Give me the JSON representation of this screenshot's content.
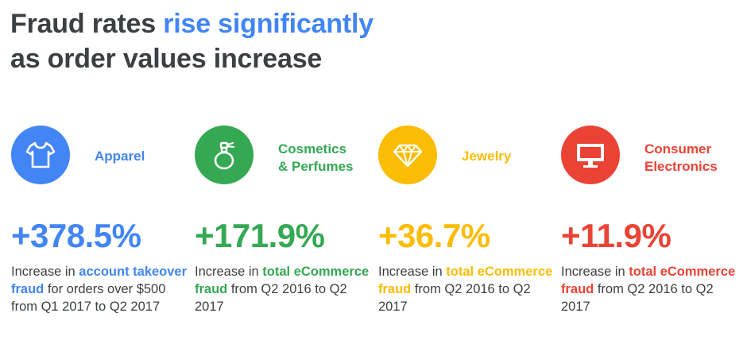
{
  "headline": {
    "part1": "Fraud rates ",
    "accent": "rise significantly",
    "part2": "as order values increase"
  },
  "colors": {
    "blue": "#4285f4",
    "green": "#34a853",
    "yellow": "#fbbc04",
    "red": "#ea4335",
    "text": "#3c4043"
  },
  "categories": [
    {
      "icon": "tshirt-icon",
      "label_line1": "Apparel",
      "label_line2": "",
      "percent": "+378.5%",
      "desc_pre": "Increase in ",
      "desc_bold": "account takeover fraud",
      "desc_post": " for orders over $500 from Q1 2017 to Q2 2017"
    },
    {
      "icon": "perfume-bottle-icon",
      "label_line1": "Cosmetics",
      "label_line2": "& Perfumes",
      "percent": "+171.9%",
      "desc_pre": "Increase in ",
      "desc_bold": "total eCommerce fraud",
      "desc_post": " from Q2 2016 to Q2 2017"
    },
    {
      "icon": "diamond-icon",
      "label_line1": "Jewelry",
      "label_line2": "",
      "percent": "+36.7%",
      "desc_pre": "Increase in ",
      "desc_bold": "total eCommerce fraud",
      "desc_post": " from Q2 2016 to Q2 2017"
    },
    {
      "icon": "monitor-icon",
      "label_line1": "Consumer",
      "label_line2": "Electronics",
      "percent": "+11.9%",
      "desc_pre": "Increase in ",
      "desc_bold": "total eCommerce fraud",
      "desc_post": " from Q2 2016 to Q2 2017"
    }
  ]
}
